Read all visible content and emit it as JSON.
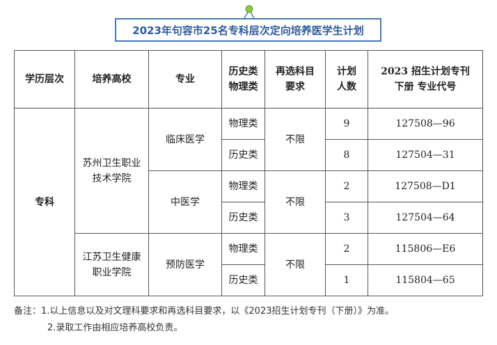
{
  "title": "2023年句容市25名专科层次定向培养医学生计划",
  "headers": {
    "level": "学历层次",
    "school": "培养高校",
    "major": "专业",
    "category_l1": "历史类",
    "category_l2": "物理类",
    "reselect_l1": "再选科目",
    "reselect_l2": "要求",
    "count_l1": "计划",
    "count_l2": "人数",
    "code_l1": "2023 招生计划专刊",
    "code_l2": "下册 专业代号"
  },
  "level": "专科",
  "schools": [
    {
      "name_l1": "苏州卫生职业",
      "name_l2": "技术学院",
      "majors": [
        {
          "name": "临床医学",
          "reselect": "不限",
          "rows": [
            {
              "category": "物理类",
              "count": "9",
              "code": "127508—96"
            },
            {
              "category": "历史类",
              "count": "8",
              "code": "127504—31"
            }
          ]
        },
        {
          "name": "中医学",
          "reselect": "不限",
          "rows": [
            {
              "category": "物理类",
              "count": "2",
              "code": "127508—D1"
            },
            {
              "category": "历史类",
              "count": "3",
              "code": "127504—64"
            }
          ]
        }
      ]
    },
    {
      "name_l1": "江苏卫生健康",
      "name_l2": "职业学院",
      "majors": [
        {
          "name": "预防医学",
          "reselect": "不限",
          "rows": [
            {
              "category": "物理类",
              "count": "2",
              "code": "115806—E6"
            },
            {
              "category": "历史类",
              "count": "1",
              "code": "115804—65"
            }
          ]
        }
      ]
    }
  ],
  "notes": {
    "line1": "备注：1.以上信息以及对文理科要求和再选科目要求，以《2023招生计划专刊（下册）》为准。",
    "line2": "2.录取工作由相应培养高校负责。"
  },
  "colors": {
    "title_border": "#4a79b5",
    "title_text": "#2e5b99",
    "pin_fill": "#8fc74a"
  }
}
